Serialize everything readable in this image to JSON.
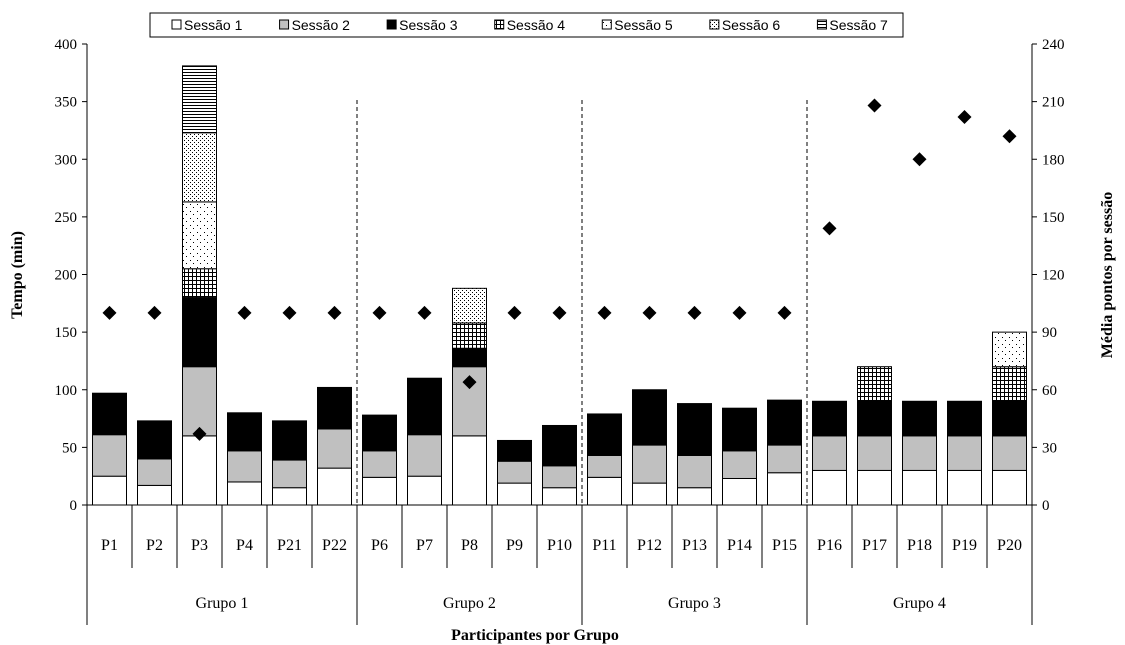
{
  "chart_data": {
    "type": "bar",
    "stacked": true,
    "title": "",
    "xlabel": "Participantes por Grupo",
    "ylabel": "Tempo (min)",
    "y2label": "Média pontos por sessão",
    "ylim": [
      0,
      400
    ],
    "yticks": [
      0,
      50,
      100,
      150,
      200,
      250,
      300,
      350,
      400
    ],
    "y2lim": [
      0,
      240
    ],
    "y2ticks": [
      0,
      30,
      60,
      90,
      120,
      150,
      180,
      210,
      240
    ],
    "grid": false,
    "legend_position": "top",
    "categories": [
      "P1",
      "P2",
      "P3",
      "P4",
      "P21",
      "P22",
      "P6",
      "P7",
      "P8",
      "P9",
      "P10",
      "P11",
      "P12",
      "P13",
      "P14",
      "P15",
      "P16",
      "P17",
      "P18",
      "P19",
      "P20"
    ],
    "groups": [
      {
        "label": "Grupo 1",
        "count": 6
      },
      {
        "label": "Grupo 2",
        "count": 5
      },
      {
        "label": "Grupo 3",
        "count": 5
      },
      {
        "label": "Grupo 4",
        "count": 5
      }
    ],
    "series": [
      {
        "name": "Sessão 1",
        "pattern": "white",
        "values": [
          25,
          17,
          60,
          20,
          15,
          32,
          24,
          25,
          60,
          19,
          15,
          24,
          19,
          15,
          23,
          28,
          30,
          30,
          30,
          30,
          30
        ]
      },
      {
        "name": "Sessão 2",
        "pattern": "gray",
        "values": [
          36,
          23,
          60,
          27,
          24,
          34,
          23,
          36,
          60,
          19,
          19,
          19,
          33,
          28,
          24,
          24,
          30,
          30,
          30,
          30,
          30
        ]
      },
      {
        "name": "Sessão 3",
        "pattern": "black",
        "values": [
          36,
          33,
          60,
          33,
          34,
          36,
          31,
          49,
          16,
          18,
          35,
          36,
          48,
          45,
          37,
          39,
          30,
          30,
          30,
          30,
          30
        ]
      },
      {
        "name": "Sessão 4",
        "pattern": "grid",
        "values": [
          0,
          0,
          25,
          0,
          0,
          0,
          0,
          0,
          22,
          0,
          0,
          0,
          0,
          0,
          0,
          0,
          0,
          30,
          0,
          0,
          30
        ]
      },
      {
        "name": "Sessão 5",
        "pattern": "dots",
        "values": [
          0,
          0,
          58,
          0,
          0,
          0,
          0,
          0,
          0,
          0,
          0,
          0,
          0,
          0,
          0,
          0,
          0,
          0,
          0,
          0,
          30
        ]
      },
      {
        "name": "Sessão 6",
        "pattern": "dense-dots",
        "values": [
          0,
          0,
          60,
          0,
          0,
          0,
          0,
          0,
          30,
          0,
          0,
          0,
          0,
          0,
          0,
          0,
          0,
          0,
          0,
          0,
          0
        ]
      },
      {
        "name": "Sessão 7",
        "pattern": "hlines",
        "values": [
          0,
          0,
          58,
          0,
          0,
          0,
          0,
          0,
          0,
          0,
          0,
          0,
          0,
          0,
          0,
          0,
          0,
          0,
          0,
          0,
          0
        ]
      }
    ],
    "secondary_series": {
      "type": "scatter",
      "marker": "diamond",
      "axis": "right",
      "values": [
        100,
        100,
        37,
        100,
        100,
        100,
        100,
        100,
        64,
        100,
        100,
        100,
        100,
        100,
        100,
        100,
        144,
        208,
        180,
        202,
        192
      ]
    }
  }
}
